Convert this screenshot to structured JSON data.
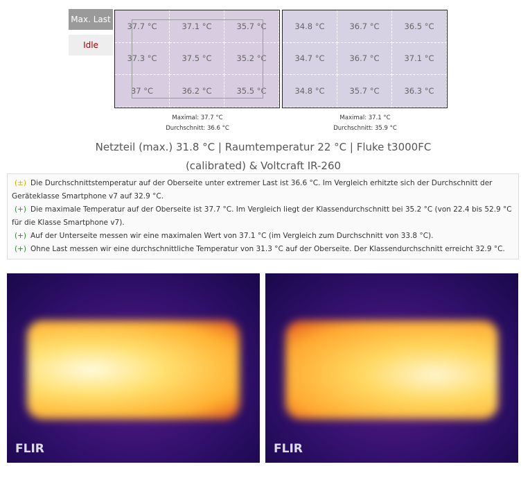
{
  "tabs": [
    "Max. Last",
    "Idle"
  ],
  "panels": [
    {
      "cells": [
        [
          "37.7 °C",
          "37.1 °C",
          "35.7 °C"
        ],
        [
          "37.3 °C",
          "37.5 °C",
          "35.2 °C"
        ],
        [
          "37 °C",
          "36.2 °C",
          "35.5 °C"
        ]
      ],
      "max": "Maximal: 37.7 °C",
      "avg": "Durchschnitt: 36.6 °C"
    },
    {
      "cells": [
        [
          "34.8 °C",
          "36.7 °C",
          "36.5 °C"
        ],
        [
          "34.7 °C",
          "36.7 °C",
          "37.1 °C"
        ],
        [
          "34.8 °C",
          "35.7 °C",
          "36.3 °C"
        ]
      ],
      "max": "Maximal: 37.1 °C",
      "avg": "Durchschnitt: 35.9 °C"
    }
  ],
  "summary": "Netzteil (max.)  31.8 °C | Raumtemperatur 22 °C | Fluke t3000FC (calibrated) & Voltcraft IR-260",
  "notes": [
    {
      "marker": "(±)",
      "text": "Die Durchschnittstemperatur auf der Oberseite unter extremer Last ist 36.6 °C. Im Vergleich erhitzte sich der Durchschnitt der Geräteklasse Smartphone v7 auf 32.9 °C."
    },
    {
      "marker": "(+)",
      "text": "Die maximale Temperatur auf der Oberseite ist 37.7 °C. Im Vergleich liegt der Klassendurchschnitt bei 35.2 °C (von 22.4 bis 52.9 °C für die Klasse Smartphone v7)."
    },
    {
      "marker": "(+)",
      "text": "Auf der Unterseite messen wir eine maximalen Wert von 37.1 °C (im Vergleich zum Durchschnitt von 33.8 °C)."
    },
    {
      "marker": "(+)",
      "text": "Ohne Last messen wir eine durchschnittliche Temperatur von 31.3 °C auf der Oberseite. Der Klassendurchschnitt erreicht 32.9 °C."
    }
  ],
  "images": [
    {
      "logo": "FLIR"
    },
    {
      "logo": "FLIR"
    }
  ]
}
